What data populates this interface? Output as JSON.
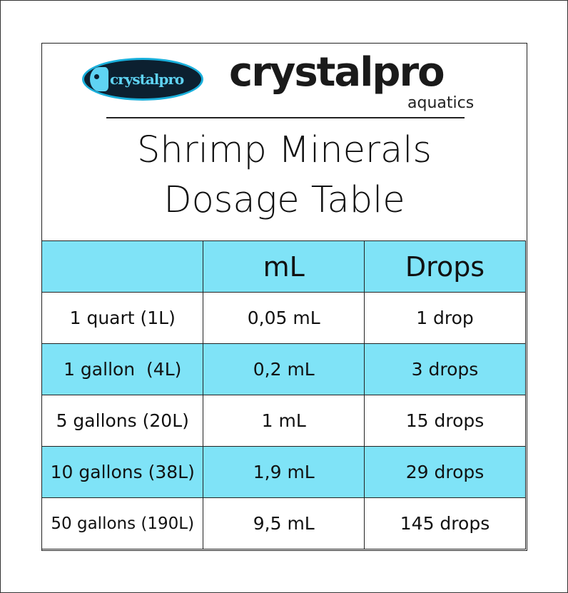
{
  "logo": {
    "badge_text": "crystalpro",
    "brand": "crystalpro",
    "subbrand": "aquatics"
  },
  "title": {
    "line1": "Shrimp Minerals",
    "line2": "Dosage Table"
  },
  "colors": {
    "highlight": "#7fe3f7",
    "logo_blue": "#1ab0dc"
  },
  "table": {
    "headers": [
      "",
      "mL",
      "Drops"
    ],
    "rows": [
      [
        "1 quart (1L)",
        "0,05 mL",
        "1 drop"
      ],
      [
        "1 gallon  (4L)",
        "0,2 mL",
        "3 drops"
      ],
      [
        "5 gallons (20L)",
        "1 mL",
        "15 drops"
      ],
      [
        "10 gallons (38L)",
        "1,9 mL",
        "29 drops"
      ],
      [
        "50 gallons (190L)",
        "9,5 mL",
        "145 drops"
      ]
    ]
  }
}
